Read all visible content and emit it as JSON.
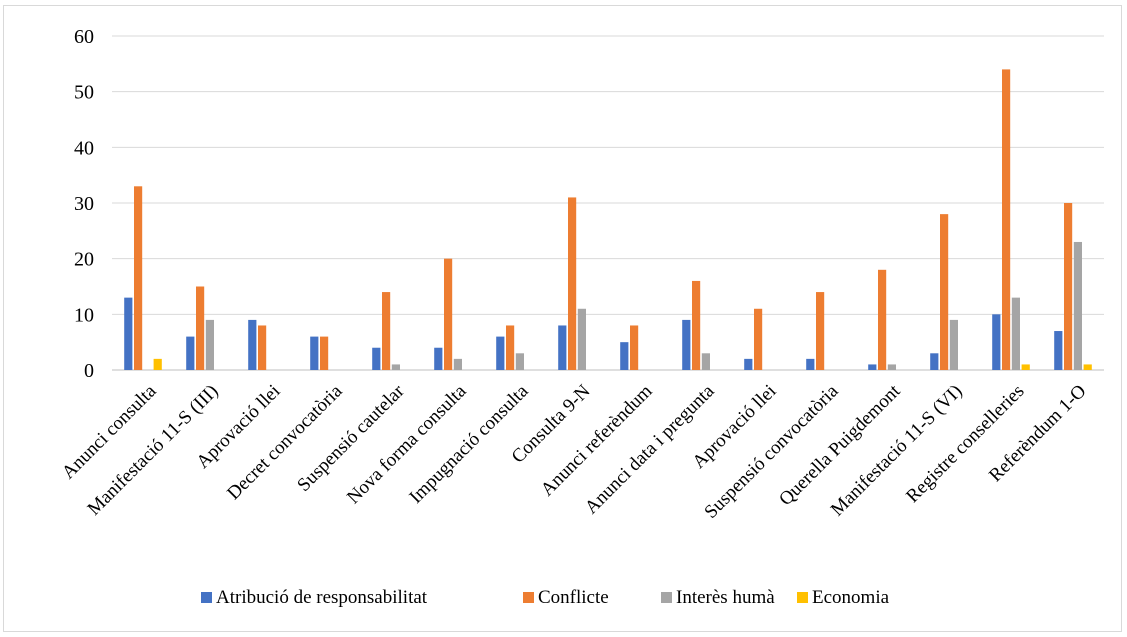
{
  "chart_data": {
    "type": "bar",
    "title": "",
    "xlabel": "",
    "ylabel": "",
    "ylim": [
      0,
      60
    ],
    "yticks": [
      0,
      10,
      20,
      30,
      40,
      50,
      60
    ],
    "grid": true,
    "legend_position": "bottom",
    "categories": [
      "Anunci consulta",
      "Manifestació 11-S (III)",
      "Aprovació llei",
      "Decret convocatòria",
      "Suspensió cautelar",
      "Nova forma consulta",
      "Impugnació consulta",
      "Consulta 9-N",
      "Anunci referèndum",
      "Anunci data i pregunta",
      "Aprovació llei",
      "Suspensió convocatòria",
      "Querella Puigdemont",
      "Manifestació 11-S (VI)",
      "Registre conselleries",
      "Referèndum 1-O"
    ],
    "series": [
      {
        "name": "Atribució de responsabilitat",
        "color": "#4472C4",
        "values": [
          13,
          6,
          9,
          6,
          4,
          4,
          6,
          8,
          5,
          9,
          2,
          2,
          1,
          3,
          10,
          7
        ]
      },
      {
        "name": "Conflicte",
        "color": "#ED7D31",
        "values": [
          33,
          15,
          8,
          6,
          14,
          20,
          8,
          31,
          8,
          16,
          11,
          14,
          18,
          28,
          54,
          30
        ]
      },
      {
        "name": "Interès humà",
        "color": "#A5A5A5",
        "values": [
          0,
          9,
          0,
          0,
          1,
          2,
          3,
          11,
          0,
          3,
          0,
          0,
          1,
          9,
          13,
          23
        ]
      },
      {
        "name": "Economia",
        "color": "#FFC000",
        "values": [
          2,
          0,
          0,
          0,
          0,
          0,
          0,
          0,
          0,
          0,
          0,
          0,
          0,
          0,
          1,
          1
        ]
      }
    ]
  }
}
